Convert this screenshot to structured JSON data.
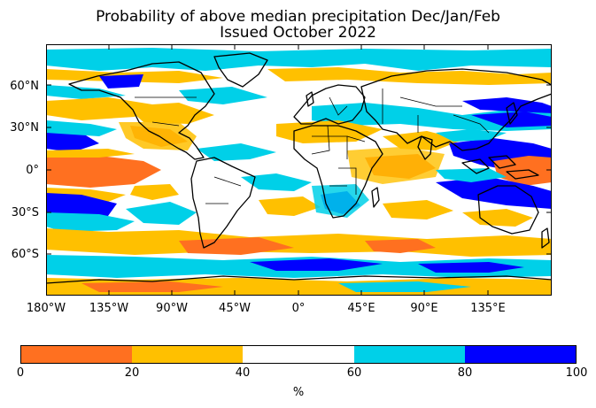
{
  "title": "Probability of above median precipitation Dec/Jan/Feb",
  "subtitle": "Issued October 2022",
  "map": {
    "projection": "plate-carree",
    "lat_ticks": [
      "60°N",
      "30°N",
      "0°",
      "30°S",
      "60°S"
    ],
    "lon_ticks": [
      "180°W",
      "135°W",
      "90°W",
      "45°W",
      "0°",
      "45°E",
      "90°E",
      "135°E"
    ],
    "palette": {
      "0-20": "#ff7020",
      "20-40": "#ffc000",
      "40-60": "#ffffff",
      "60-80": "#00d0e8",
      "80-100": "#0000ff"
    }
  },
  "colorbar": {
    "ticks": [
      "0",
      "20",
      "40",
      "60",
      "80",
      "100"
    ],
    "label": "%",
    "colors": [
      "#ff7020",
      "#ffc000",
      "#ffffff",
      "#00d0e8",
      "#0000ff"
    ]
  }
}
